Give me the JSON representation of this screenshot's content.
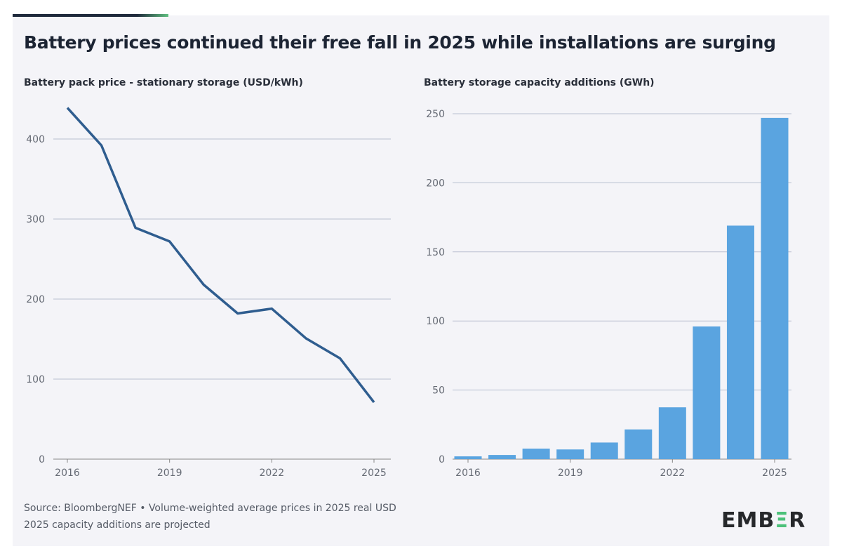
{
  "title": "Battery prices continued their free fall in 2025 while installations are surging",
  "chart_data": [
    {
      "type": "line",
      "title": "Battery pack price - stationary storage (USD/kWh)",
      "x": [
        2016,
        2017,
        2018,
        2019,
        2020,
        2021,
        2022,
        2023,
        2024,
        2025
      ],
      "values": [
        439,
        392,
        289,
        272,
        218,
        182,
        188,
        151,
        126,
        71
      ],
      "xticks": [
        "2016",
        "2019",
        "2022",
        "2025"
      ],
      "yticks": [
        "0",
        "100",
        "200",
        "300",
        "400"
      ],
      "ylim": [
        0,
        440
      ],
      "grid": true,
      "color": "#2f5d8f"
    },
    {
      "type": "bar",
      "title": "Battery storage capacity additions (GWh)",
      "categories": [
        2016,
        2017,
        2018,
        2019,
        2020,
        2021,
        2022,
        2023,
        2024,
        2025
      ],
      "values": [
        2,
        3,
        7.6,
        7,
        12,
        21.5,
        37.5,
        96,
        169,
        247
      ],
      "xticks": [
        "2016",
        "2019",
        "2022",
        "2025"
      ],
      "yticks": [
        "0",
        "50",
        "100",
        "150",
        "200",
        "250"
      ],
      "ylim": [
        0,
        250
      ],
      "grid": true,
      "color": "#5aa4e0"
    }
  ],
  "footer": {
    "source": "Source: BloombergNEF • Volume-weighted average prices in 2025 real USD",
    "note": "2025 capacity additions are projected"
  },
  "logo": {
    "text": "EMBER",
    "accent": "#4cc17a"
  }
}
